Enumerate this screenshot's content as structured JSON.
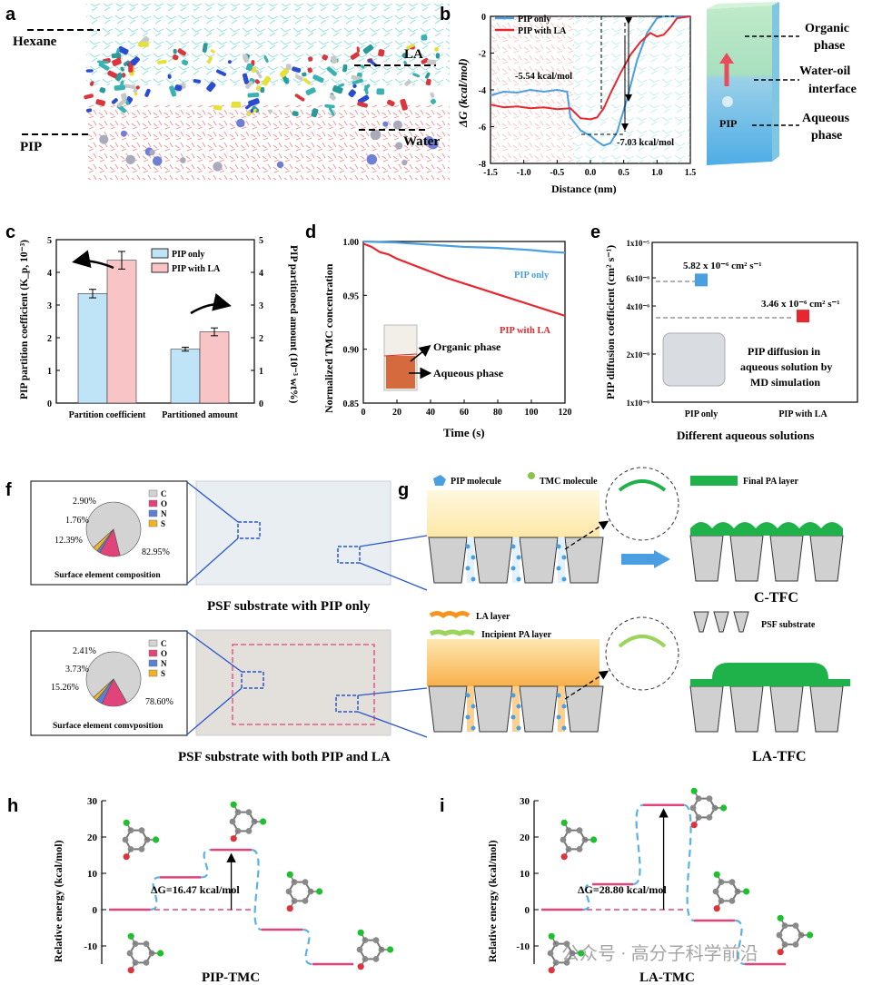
{
  "figure": {
    "panel_labels": [
      "a",
      "b",
      "c",
      "d",
      "e",
      "f",
      "g",
      "h",
      "i"
    ]
  },
  "panel_a": {
    "labels": {
      "hexane": "Hexane",
      "la": "LA",
      "pip": "PIP",
      "water": "Water"
    }
  },
  "panel_b_schematic": {
    "organic": [
      "Organic",
      "phase"
    ],
    "interface": [
      "Water-oil",
      "interface"
    ],
    "aqueous": [
      "Aqueous",
      "phase"
    ],
    "pip": "PIP"
  },
  "panel_f": {
    "top_caption": "PSF substrate with PIP only",
    "bottom_caption": "PSF substrate with both PIP and LA",
    "top_pie_title": "Surface element composition",
    "bottom_pie_title": "Surface element comvposition",
    "legend": [
      "C",
      "O",
      "N",
      "S"
    ]
  },
  "panel_g": {
    "legend": {
      "pip": "PIP molecule",
      "tmc": "TMC molecule",
      "final_pa": "Final PA layer",
      "la_layer": "LA layer",
      "incipient": "Incipient PA layer",
      "psf": "PSF substrate"
    },
    "c_tfc": "C-TFC",
    "la_tfc": "LA-TFC"
  },
  "colors": {
    "blue": "#4a9fe3",
    "red": "#e8262e",
    "bar_blue": "#bfe3f7",
    "bar_pink": "#f9c4c6",
    "pink_line": "#e0447a",
    "dash_blue": "#5ab1e8",
    "green": "#1fb24a",
    "orange": "#f7941d"
  },
  "watermark": "公众号 · 高分子科学前沿",
  "chart_data": [
    {
      "id": "b",
      "type": "line",
      "ylabel": "ΔG (kcal/mol)",
      "xlabel": "Distance (nm)",
      "xlim": [
        -1.5,
        1.5
      ],
      "ylim": [
        -8,
        0
      ],
      "xticks": [
        "-1.5",
        "-1.0",
        "-0.5",
        "0.0",
        "0.5",
        "1.0",
        "1.5"
      ],
      "yticks": [
        "0",
        "-2",
        "-4",
        "-6",
        "-8"
      ],
      "series": [
        {
          "name": "PIP only",
          "x": [
            -1.5,
            -1.3,
            -1.1,
            -0.9,
            -0.7,
            -0.5,
            -0.35,
            -0.3,
            -0.15,
            0.0,
            0.1,
            0.2,
            0.3,
            0.4,
            0.55,
            0.7,
            0.85,
            1.0,
            1.1,
            1.2,
            1.5
          ],
          "y": [
            -4.3,
            -4.1,
            -4.15,
            -4.0,
            -4.1,
            -4.0,
            -4.1,
            -5.5,
            -6.2,
            -6.5,
            -6.8,
            -7.03,
            -6.9,
            -6.3,
            -4.5,
            -2.4,
            -0.9,
            -0.1,
            0.0,
            0.0,
            0.0
          ]
        },
        {
          "name": "PIP with LA",
          "x": [
            -1.5,
            -1.3,
            -1.1,
            -0.9,
            -0.7,
            -0.5,
            -0.3,
            -0.15,
            0.0,
            0.1,
            0.2,
            0.3,
            0.45,
            0.6,
            0.75,
            0.9,
            1.0,
            1.1,
            1.2,
            1.3,
            1.5
          ],
          "y": [
            -4.8,
            -4.95,
            -4.9,
            -5.0,
            -4.95,
            -5.05,
            -5.0,
            -5.54,
            -5.6,
            -5.5,
            -5.0,
            -4.2,
            -3.1,
            -2.1,
            -1.4,
            -0.9,
            -1.1,
            -1.0,
            -0.6,
            -0.1,
            0.0
          ]
        }
      ],
      "annotations": [
        "-5.54 kcal/mol",
        "-7.03 kcal/mol"
      ]
    },
    {
      "id": "c",
      "type": "bar",
      "categories": [
        "Partition coefficient",
        "Partitioned amount"
      ],
      "series": [
        {
          "name": "PIP only",
          "values": [
            3.35,
            1.65
          ],
          "errors": [
            0.13,
            0.06
          ]
        },
        {
          "name": "PIP with LA",
          "values": [
            4.37,
            2.18
          ],
          "errors": [
            0.27,
            0.12
          ]
        }
      ],
      "ylabel_left": "PIP partition coefficient (K_p, 10⁻³)",
      "ylabel_right": "PIP partitioned amount (10⁻³ wt%)",
      "ylim": [
        0,
        5
      ],
      "yticks": [
        "0",
        "1",
        "2",
        "3",
        "4",
        "5"
      ]
    },
    {
      "id": "d",
      "type": "line",
      "xlabel": "Time (s)",
      "ylabel": "Normalized TMC concentration",
      "xlim": [
        0,
        120
      ],
      "ylim": [
        0.85,
        1.0
      ],
      "xticks": [
        "0",
        "20",
        "40",
        "60",
        "80",
        "100",
        "120"
      ],
      "yticks": [
        "0.85",
        "0.90",
        "0.95",
        "1.00"
      ],
      "series": [
        {
          "name": "PIP only",
          "x": [
            0,
            10,
            20,
            30,
            40,
            50,
            60,
            70,
            80,
            90,
            100,
            110,
            120
          ],
          "y": [
            1.0,
            0.9995,
            0.999,
            0.998,
            0.997,
            0.996,
            0.995,
            0.9945,
            0.994,
            0.993,
            0.992,
            0.9905,
            0.9895
          ]
        },
        {
          "name": "PIP with LA",
          "x": [
            0,
            5,
            10,
            15,
            20,
            25,
            30,
            35,
            40,
            50,
            60,
            70,
            80,
            90,
            100,
            110,
            120
          ],
          "y": [
            0.998,
            0.995,
            0.99,
            0.988,
            0.984,
            0.981,
            0.978,
            0.975,
            0.972,
            0.966,
            0.961,
            0.956,
            0.951,
            0.946,
            0.941,
            0.936,
            0.931
          ]
        }
      ],
      "series_labels": [
        "PIP only",
        "PIP with LA"
      ],
      "inset_labels": [
        "Organic phase",
        "Aqueous phase"
      ]
    },
    {
      "id": "e",
      "type": "scatter",
      "xlabel": "Different aqueous solutions",
      "ylabel": "PIP diffusion coefficient (cm² s⁻¹)",
      "categories": [
        "PIP only",
        "PIP with LA"
      ],
      "values": [
        5.82e-06,
        3.46e-06
      ],
      "value_labels": [
        "5.82 x 10⁻⁶ cm² s⁻¹",
        "3.46 x 10⁻⁶ cm² s⁻¹"
      ],
      "yticks": [
        "1x10⁻⁶",
        "2x10⁻⁶",
        "4x10⁻⁶",
        "6x10⁻⁶",
        "1x10⁻⁵"
      ],
      "note": [
        "PIP diffusion in",
        "aqueous solution by",
        "MD simulation"
      ]
    },
    {
      "id": "f-top",
      "type": "pie",
      "categories": [
        "C",
        "O",
        "N",
        "S"
      ],
      "values": [
        82.95,
        12.39,
        1.76,
        2.9
      ],
      "labels": [
        "82.95%",
        "12.39%",
        "1.76%",
        "2.90%"
      ]
    },
    {
      "id": "f-bottom",
      "type": "pie",
      "categories": [
        "C",
        "O",
        "N",
        "S"
      ],
      "values": [
        78.6,
        15.26,
        3.73,
        2.41
      ],
      "labels": [
        "78.60%",
        "15.26%",
        "3.73%",
        "2.41%"
      ]
    },
    {
      "id": "h",
      "type": "line",
      "title": "PIP-TMC",
      "ylabel": "Relative energy (kcal/mol)",
      "ylim": [
        -15,
        30
      ],
      "yticks": [
        "30",
        "20",
        "10",
        "0",
        "-10"
      ],
      "levels": [
        0,
        8.9,
        16.47,
        -5.5,
        -15
      ],
      "annotation": "ΔG=16.47 kcal/mol"
    },
    {
      "id": "i",
      "type": "line",
      "title": "LA-TMC",
      "ylabel": "Relative energy (kcal/mol)",
      "ylim": [
        -15,
        30
      ],
      "yticks": [
        "30",
        "20",
        "10",
        "0",
        "-10"
      ],
      "levels": [
        0,
        7,
        28.8,
        -3,
        -15
      ],
      "annotation": "ΔG=28.80 kcal/mol"
    }
  ]
}
